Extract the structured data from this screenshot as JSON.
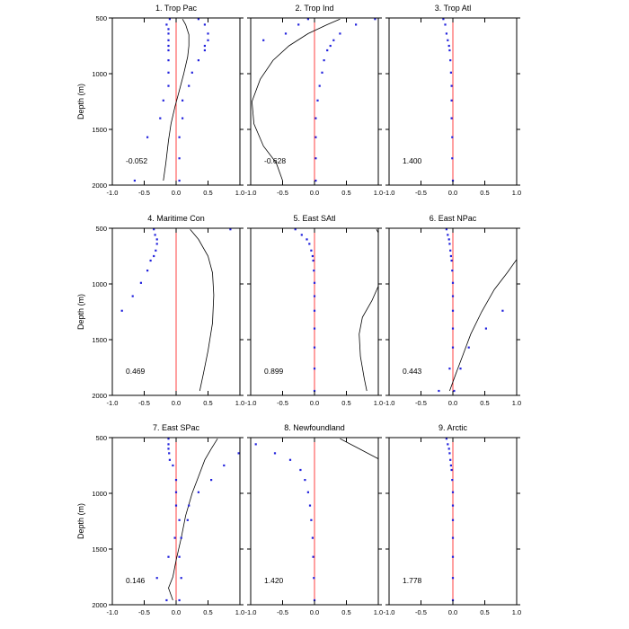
{
  "chart_data": {
    "type": "scatter",
    "layout": {
      "rows": 3,
      "cols": 3
    },
    "y_label": "Depth (m)",
    "xlim": [
      -1.0,
      1.0
    ],
    "ylim": [
      500,
      2000
    ],
    "y_reversed": true,
    "x_ticks": [
      "-1.0",
      "-0.5",
      "0.0",
      "0.5",
      "1.0"
    ],
    "x_tick_values": [
      -1.0,
      -0.5,
      0.0,
      0.5,
      1.0
    ],
    "y_ticks": [
      "500",
      "1000",
      "1500",
      "2000"
    ],
    "y_tick_values": [
      500,
      1000,
      1500,
      2000
    ],
    "colors": {
      "dots": "#2222dd",
      "zero_line": "#ff4040",
      "curve": "#000000",
      "frame": "#000000"
    },
    "panels": [
      {
        "title": "1. Trop Pac",
        "value_label": "-0.052",
        "dots": [
          [
            0.35,
            510
          ],
          [
            -0.1,
            510
          ],
          [
            -0.15,
            560
          ],
          [
            -0.12,
            600
          ],
          [
            0.45,
            560
          ],
          [
            0.5,
            640
          ],
          [
            -0.12,
            640
          ],
          [
            0.5,
            700
          ],
          [
            -0.12,
            700
          ],
          [
            0.45,
            750
          ],
          [
            -0.12,
            750
          ],
          [
            -0.12,
            790
          ],
          [
            0.45,
            790
          ],
          [
            -0.12,
            880
          ],
          [
            0.35,
            880
          ],
          [
            -0.12,
            990
          ],
          [
            0.25,
            990
          ],
          [
            -0.12,
            1110
          ],
          [
            0.2,
            1110
          ],
          [
            -0.2,
            1240
          ],
          [
            0.1,
            1240
          ],
          [
            -0.25,
            1400
          ],
          [
            0.1,
            1400
          ],
          [
            -0.45,
            1570
          ],
          [
            0.05,
            1570
          ],
          [
            0.05,
            1760
          ],
          [
            -0.65,
            1960
          ],
          [
            0.05,
            1960
          ]
        ],
        "curve": [
          [
            0.1,
            510
          ],
          [
            0.15,
            560
          ],
          [
            0.2,
            650
          ],
          [
            0.2,
            750
          ],
          [
            0.18,
            850
          ],
          [
            0.12,
            1000
          ],
          [
            0.05,
            1150
          ],
          [
            -0.02,
            1300
          ],
          [
            -0.08,
            1450
          ],
          [
            -0.12,
            1600
          ],
          [
            -0.16,
            1800
          ],
          [
            -0.2,
            1960
          ]
        ]
      },
      {
        "title": "2. Trop Ind",
        "value_label": "-0.628",
        "dots": [
          [
            -0.1,
            510
          ],
          [
            0.95,
            510
          ],
          [
            0.65,
            560
          ],
          [
            -0.25,
            560
          ],
          [
            -0.45,
            640
          ],
          [
            0.4,
            640
          ],
          [
            -0.8,
            700
          ],
          [
            0.3,
            700
          ],
          [
            0.25,
            750
          ],
          [
            0.2,
            790
          ],
          [
            0.15,
            880
          ],
          [
            0.12,
            990
          ],
          [
            0.08,
            1110
          ],
          [
            0.05,
            1240
          ],
          [
            0.02,
            1400
          ],
          [
            0.02,
            1570
          ],
          [
            0.02,
            1760
          ],
          [
            0.02,
            1960
          ]
        ],
        "curve": [
          [
            0.4,
            510
          ],
          [
            0.2,
            560
          ],
          [
            -0.1,
            640
          ],
          [
            -0.4,
            750
          ],
          [
            -0.65,
            880
          ],
          [
            -0.85,
            1050
          ],
          [
            -0.98,
            1250
          ],
          [
            -0.95,
            1450
          ],
          [
            -0.8,
            1650
          ],
          [
            -0.6,
            1800
          ],
          [
            -0.5,
            1960
          ]
        ]
      },
      {
        "title": "3. Trop Atl",
        "value_label": "1.400",
        "dots": [
          [
            -0.15,
            510
          ],
          [
            -0.12,
            560
          ],
          [
            -0.1,
            640
          ],
          [
            -0.08,
            700
          ],
          [
            -0.06,
            750
          ],
          [
            -0.05,
            790
          ],
          [
            -0.04,
            880
          ],
          [
            -0.03,
            990
          ],
          [
            -0.02,
            1110
          ],
          [
            -0.02,
            1240
          ],
          [
            -0.02,
            1400
          ],
          [
            -0.01,
            1570
          ],
          [
            -0.01,
            1760
          ],
          [
            0.0,
            1960
          ]
        ],
        "curve": []
      },
      {
        "title": "4. Maritime Con",
        "value_label": "0.469",
        "dots": [
          [
            -0.35,
            510
          ],
          [
            0.85,
            510
          ],
          [
            -0.33,
            560
          ],
          [
            -0.3,
            600
          ],
          [
            -0.3,
            640
          ],
          [
            -0.32,
            700
          ],
          [
            -0.35,
            750
          ],
          [
            -0.4,
            790
          ],
          [
            -0.45,
            880
          ],
          [
            -0.55,
            990
          ],
          [
            -0.68,
            1110
          ],
          [
            -0.85,
            1240
          ]
        ],
        "curve": [
          [
            0.22,
            510
          ],
          [
            0.35,
            600
          ],
          [
            0.5,
            750
          ],
          [
            0.57,
            900
          ],
          [
            0.59,
            1100
          ],
          [
            0.57,
            1350
          ],
          [
            0.5,
            1600
          ],
          [
            0.43,
            1800
          ],
          [
            0.37,
            1960
          ]
        ]
      },
      {
        "title": "5. East SAtl",
        "value_label": "0.899",
        "dots": [
          [
            -0.3,
            510
          ],
          [
            -0.2,
            560
          ],
          [
            -0.12,
            600
          ],
          [
            -0.08,
            640
          ],
          [
            -0.05,
            700
          ],
          [
            -0.03,
            750
          ],
          [
            -0.02,
            790
          ],
          [
            -0.01,
            880
          ],
          [
            0.0,
            990
          ],
          [
            0.0,
            1110
          ],
          [
            0.0,
            1240
          ],
          [
            0.0,
            1400
          ],
          [
            0.0,
            1570
          ],
          [
            0.0,
            1760
          ],
          [
            0.0,
            1960
          ]
        ],
        "curve": [
          [
            0.97,
            510
          ],
          [
            1.0,
            540
          ],
          [
            1.0,
            1020
          ],
          [
            0.9,
            1150
          ],
          [
            0.75,
            1300
          ],
          [
            0.7,
            1450
          ],
          [
            0.72,
            1650
          ],
          [
            0.78,
            1850
          ],
          [
            0.82,
            1960
          ]
        ]
      },
      {
        "title": "6. East NPac",
        "value_label": "0.443",
        "dots": [
          [
            -0.1,
            510
          ],
          [
            -0.08,
            560
          ],
          [
            -0.06,
            600
          ],
          [
            -0.05,
            640
          ],
          [
            -0.04,
            700
          ],
          [
            -0.03,
            750
          ],
          [
            -0.02,
            790
          ],
          [
            -0.01,
            880
          ],
          [
            0.0,
            990
          ],
          [
            0.0,
            1110
          ],
          [
            0.78,
            1240
          ],
          [
            0.0,
            1240
          ],
          [
            0.52,
            1400
          ],
          [
            0.0,
            1400
          ],
          [
            0.25,
            1570
          ],
          [
            0.0,
            1570
          ],
          [
            0.12,
            1760
          ],
          [
            -0.05,
            1760
          ],
          [
            -0.22,
            1960
          ],
          [
            0.02,
            1960
          ]
        ],
        "curve": [
          [
            1.0,
            780
          ],
          [
            0.85,
            900
          ],
          [
            0.65,
            1050
          ],
          [
            0.45,
            1250
          ],
          [
            0.28,
            1450
          ],
          [
            0.15,
            1650
          ],
          [
            0.05,
            1800
          ],
          [
            -0.05,
            1960
          ]
        ]
      },
      {
        "title": "7. East SPac",
        "value_label": "0.146",
        "dots": [
          [
            -0.12,
            510
          ],
          [
            -0.12,
            560
          ],
          [
            -0.12,
            600
          ],
          [
            -0.11,
            640
          ],
          [
            0.98,
            640
          ],
          [
            -0.1,
            700
          ],
          [
            -0.05,
            750
          ],
          [
            0.75,
            750
          ],
          [
            0.0,
            880
          ],
          [
            0.55,
            880
          ],
          [
            0.0,
            990
          ],
          [
            0.35,
            990
          ],
          [
            0.2,
            1110
          ],
          [
            0.0,
            1110
          ],
          [
            0.18,
            1240
          ],
          [
            0.05,
            1240
          ],
          [
            0.08,
            1400
          ],
          [
            -0.02,
            1400
          ],
          [
            -0.12,
            1570
          ],
          [
            0.05,
            1570
          ],
          [
            -0.3,
            1760
          ],
          [
            0.08,
            1760
          ],
          [
            -0.15,
            1960
          ],
          [
            0.05,
            1960
          ]
        ],
        "curve": [
          [
            0.65,
            510
          ],
          [
            0.55,
            600
          ],
          [
            0.45,
            700
          ],
          [
            0.35,
            850
          ],
          [
            0.25,
            1000
          ],
          [
            0.15,
            1200
          ],
          [
            0.08,
            1400
          ],
          [
            0.0,
            1600
          ],
          [
            -0.05,
            1750
          ],
          [
            -0.12,
            1850
          ],
          [
            -0.05,
            1960
          ]
        ]
      },
      {
        "title": "8. Newfoundland",
        "value_label": "1.420",
        "dots": [
          [
            -0.92,
            560
          ],
          [
            -0.62,
            640
          ],
          [
            -0.38,
            700
          ],
          [
            -0.22,
            790
          ],
          [
            -0.15,
            880
          ],
          [
            -0.1,
            990
          ],
          [
            -0.07,
            1110
          ],
          [
            -0.05,
            1240
          ],
          [
            -0.03,
            1400
          ],
          [
            -0.02,
            1570
          ],
          [
            -0.01,
            1760
          ],
          [
            0.0,
            1960
          ]
        ],
        "curve": [
          [
            0.4,
            510
          ],
          [
            0.7,
            600
          ],
          [
            1.0,
            690
          ]
        ]
      },
      {
        "title": "9. Arctic",
        "value_label": "1.778",
        "dots": [
          [
            -0.1,
            510
          ],
          [
            -0.08,
            560
          ],
          [
            -0.06,
            600
          ],
          [
            -0.05,
            640
          ],
          [
            -0.04,
            700
          ],
          [
            -0.03,
            750
          ],
          [
            -0.02,
            790
          ],
          [
            -0.01,
            880
          ],
          [
            0.0,
            990
          ],
          [
            0.0,
            1110
          ],
          [
            0.0,
            1240
          ],
          [
            0.0,
            1400
          ],
          [
            0.0,
            1570
          ],
          [
            0.0,
            1760
          ],
          [
            0.0,
            1960
          ]
        ],
        "curve": []
      }
    ]
  }
}
